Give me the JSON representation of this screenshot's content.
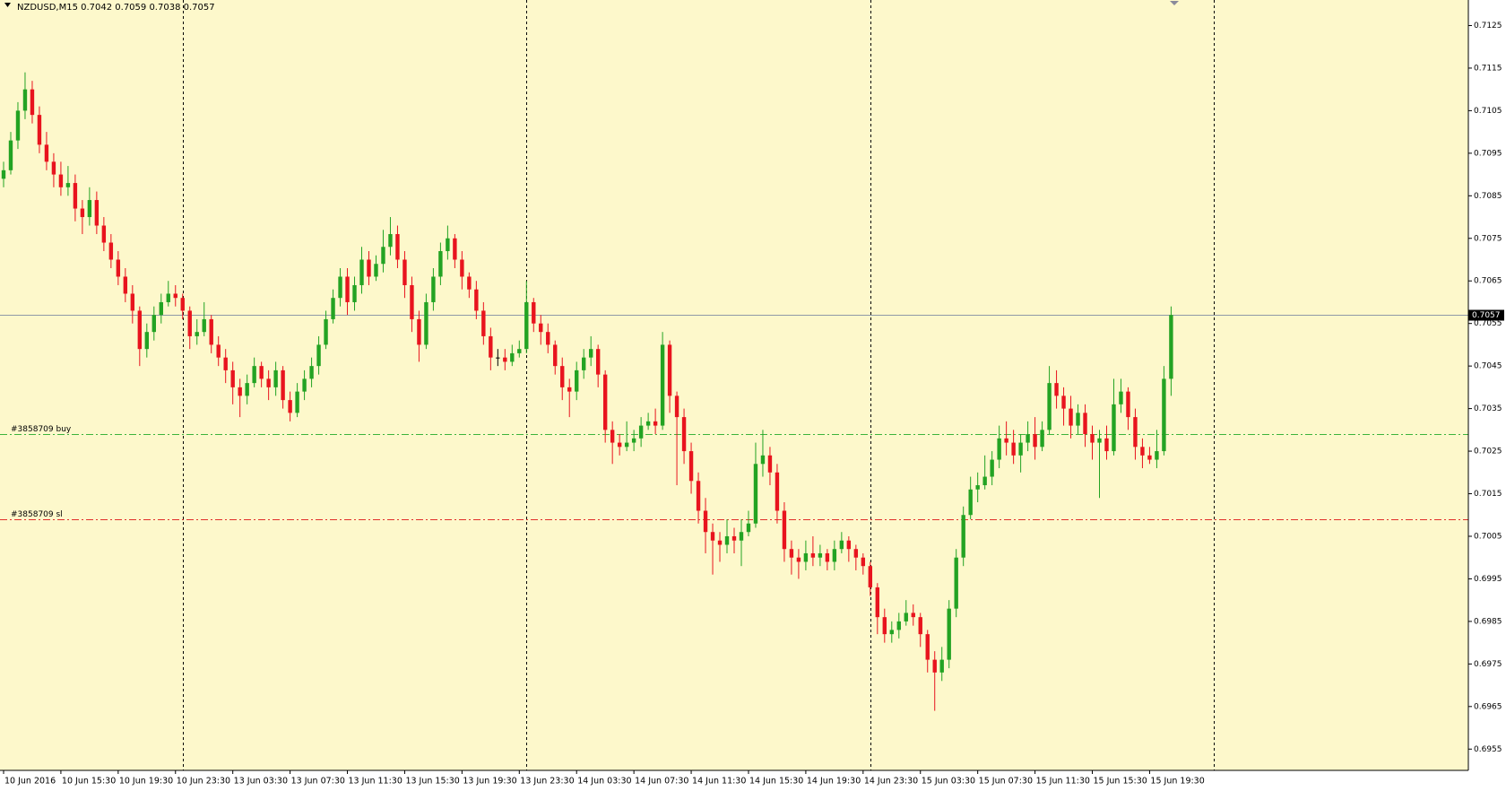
{
  "chart_data": {
    "type": "candlestick",
    "title": "NZDUSD,M15  0.7042 0.7059 0.7038 0.7057",
    "up_color": "#23a323",
    "down_color": "#e8141e",
    "background": "#fdf8cb",
    "ylim": [
      0.695,
      0.7131
    ],
    "yticks": [
      0.6955,
      0.6965,
      0.6975,
      0.6985,
      0.6995,
      0.7005,
      0.7015,
      0.7025,
      0.7035,
      0.7045,
      0.7055,
      0.7065,
      0.7075,
      0.7085,
      0.7095,
      0.7105,
      0.7115,
      0.7125
    ],
    "xlim": [
      -0.5,
      204.5
    ],
    "xticks": [
      {
        "value": 0,
        "label": "10 Jun 2016"
      },
      {
        "value": 8,
        "label": "10 Jun 15:30"
      },
      {
        "value": 16,
        "label": "10 Jun 19:30"
      },
      {
        "value": 24,
        "label": "10 Jun 23:30"
      },
      {
        "value": 32,
        "label": "13 Jun 03:30"
      },
      {
        "value": 40,
        "label": "13 Jun 07:30"
      },
      {
        "value": 48,
        "label": "13 Jun 11:30"
      },
      {
        "value": 56,
        "label": "13 Jun 15:30"
      },
      {
        "value": 64,
        "label": "13 Jun 19:30"
      },
      {
        "value": 72,
        "label": "13 Jun 23:30"
      },
      {
        "value": 80,
        "label": "14 Jun 03:30"
      },
      {
        "value": 88,
        "label": "14 Jun 07:30"
      },
      {
        "value": 96,
        "label": "14 Jun 11:30"
      },
      {
        "value": 104,
        "label": "14 Jun 15:30"
      },
      {
        "value": 112,
        "label": "14 Jun 19:30"
      },
      {
        "value": 120,
        "label": "14 Jun 23:30"
      },
      {
        "value": 128,
        "label": "15 Jun 03:30"
      },
      {
        "value": 136,
        "label": "15 Jun 07:30"
      },
      {
        "value": 144,
        "label": "15 Jun 11:30"
      },
      {
        "value": 152,
        "label": "15 Jun 15:30"
      },
      {
        "value": 160,
        "label": "15 Jun 19:30"
      }
    ],
    "period_separators": [
      25,
      73,
      121,
      169
    ],
    "bid_line": 0.7057,
    "order_lines": [
      {
        "label": "#3858709 buy",
        "value": 0.7029,
        "color": "#3cb33c"
      },
      {
        "label": "#3858709 sl",
        "value": 0.7009,
        "color": "#e0302a"
      }
    ],
    "candles": [
      [
        0.7089,
        0.7093,
        0.7087,
        0.7091
      ],
      [
        0.7091,
        0.71,
        0.709,
        0.7098
      ],
      [
        0.7098,
        0.7107,
        0.7096,
        0.7105
      ],
      [
        0.7105,
        0.7114,
        0.7103,
        0.711
      ],
      [
        0.711,
        0.7112,
        0.7102,
        0.7104
      ],
      [
        0.7104,
        0.7106,
        0.7095,
        0.7097
      ],
      [
        0.7097,
        0.71,
        0.7091,
        0.7093
      ],
      [
        0.7093,
        0.7095,
        0.7087,
        0.709
      ],
      [
        0.709,
        0.7093,
        0.7085,
        0.7087
      ],
      [
        0.7087,
        0.7092,
        0.7085,
        0.7088
      ],
      [
        0.7088,
        0.709,
        0.7079,
        0.7082
      ],
      [
        0.7082,
        0.7084,
        0.7076,
        0.708
      ],
      [
        0.708,
        0.7087,
        0.7078,
        0.7084
      ],
      [
        0.7084,
        0.7086,
        0.7076,
        0.7078
      ],
      [
        0.7078,
        0.708,
        0.7072,
        0.7074
      ],
      [
        0.7074,
        0.7076,
        0.7068,
        0.707
      ],
      [
        0.707,
        0.7072,
        0.7064,
        0.7066
      ],
      [
        0.7066,
        0.7068,
        0.706,
        0.7062
      ],
      [
        0.7062,
        0.7064,
        0.7055,
        0.7058
      ],
      [
        0.7058,
        0.7059,
        0.7045,
        0.7049
      ],
      [
        0.7049,
        0.7055,
        0.7047,
        0.7053
      ],
      [
        0.7053,
        0.7059,
        0.7051,
        0.7057
      ],
      [
        0.7057,
        0.7062,
        0.7055,
        0.706
      ],
      [
        0.706,
        0.7065,
        0.7059,
        0.7062
      ],
      [
        0.7062,
        0.7064,
        0.7059,
        0.7061
      ],
      [
        0.7061,
        0.7062,
        0.7056,
        0.7058
      ],
      [
        0.7058,
        0.7059,
        0.7049,
        0.7052
      ],
      [
        0.7052,
        0.7056,
        0.705,
        0.7053
      ],
      [
        0.7053,
        0.706,
        0.7052,
        0.7056
      ],
      [
        0.7056,
        0.7057,
        0.7048,
        0.705
      ],
      [
        0.705,
        0.7052,
        0.7045,
        0.7047
      ],
      [
        0.7047,
        0.7049,
        0.7041,
        0.7044
      ],
      [
        0.7044,
        0.7046,
        0.7036,
        0.704
      ],
      [
        0.704,
        0.7042,
        0.7033,
        0.7038
      ],
      [
        0.7038,
        0.7043,
        0.7036,
        0.7041
      ],
      [
        0.7041,
        0.7047,
        0.704,
        0.7045
      ],
      [
        0.7045,
        0.7046,
        0.704,
        0.7042
      ],
      [
        0.7042,
        0.7044,
        0.7037,
        0.704
      ],
      [
        0.704,
        0.7046,
        0.7038,
        0.7044
      ],
      [
        0.7044,
        0.7045,
        0.7035,
        0.7037
      ],
      [
        0.7037,
        0.7039,
        0.7032,
        0.7034
      ],
      [
        0.7034,
        0.7041,
        0.7033,
        0.7039
      ],
      [
        0.7039,
        0.7044,
        0.7037,
        0.7042
      ],
      [
        0.7042,
        0.7047,
        0.704,
        0.7045
      ],
      [
        0.7045,
        0.7052,
        0.7043,
        0.705
      ],
      [
        0.705,
        0.7058,
        0.7049,
        0.7056
      ],
      [
        0.7056,
        0.7063,
        0.7055,
        0.7061
      ],
      [
        0.7061,
        0.7068,
        0.7059,
        0.7066
      ],
      [
        0.7066,
        0.7068,
        0.7057,
        0.706
      ],
      [
        0.706,
        0.7066,
        0.7058,
        0.7064
      ],
      [
        0.7064,
        0.7073,
        0.7062,
        0.707
      ],
      [
        0.707,
        0.7072,
        0.7064,
        0.7066
      ],
      [
        0.7066,
        0.7071,
        0.7065,
        0.7069
      ],
      [
        0.7069,
        0.7077,
        0.7067,
        0.7073
      ],
      [
        0.7073,
        0.708,
        0.7071,
        0.7076
      ],
      [
        0.7076,
        0.7078,
        0.7068,
        0.707
      ],
      [
        0.707,
        0.7072,
        0.7061,
        0.7064
      ],
      [
        0.7064,
        0.7066,
        0.7053,
        0.7056
      ],
      [
        0.7056,
        0.7058,
        0.7046,
        0.705
      ],
      [
        0.705,
        0.7062,
        0.7049,
        0.706
      ],
      [
        0.706,
        0.7068,
        0.7058,
        0.7066
      ],
      [
        0.7066,
        0.7074,
        0.7064,
        0.7072
      ],
      [
        0.7072,
        0.7078,
        0.707,
        0.7075
      ],
      [
        0.7075,
        0.7076,
        0.7068,
        0.707
      ],
      [
        0.707,
        0.7072,
        0.7063,
        0.7066
      ],
      [
        0.7066,
        0.7067,
        0.7061,
        0.7063
      ],
      [
        0.7063,
        0.7065,
        0.7056,
        0.7058
      ],
      [
        0.7058,
        0.706,
        0.705,
        0.7052
      ],
      [
        0.7052,
        0.7054,
        0.7044,
        0.7047
      ],
      [
        0.7047,
        0.7049,
        0.7045,
        0.7047
      ],
      [
        0.7047,
        0.7049,
        0.7044,
        0.7046
      ],
      [
        0.7046,
        0.705,
        0.7045,
        0.7048
      ],
      [
        0.7048,
        0.7051,
        0.7047,
        0.7049
      ],
      [
        0.7049,
        0.7065,
        0.7048,
        0.706
      ],
      [
        0.706,
        0.7061,
        0.7053,
        0.7055
      ],
      [
        0.7055,
        0.7057,
        0.705,
        0.7053
      ],
      [
        0.7053,
        0.7055,
        0.7048,
        0.705
      ],
      [
        0.705,
        0.7051,
        0.7043,
        0.7045
      ],
      [
        0.7045,
        0.7047,
        0.7037,
        0.704
      ],
      [
        0.704,
        0.7042,
        0.7033,
        0.7039
      ],
      [
        0.7039,
        0.7046,
        0.7037,
        0.7044
      ],
      [
        0.7044,
        0.7049,
        0.7042,
        0.7047
      ],
      [
        0.7047,
        0.7052,
        0.7045,
        0.7049
      ],
      [
        0.7049,
        0.705,
        0.704,
        0.7043
      ],
      [
        0.7043,
        0.7044,
        0.7027,
        0.703
      ],
      [
        0.703,
        0.7032,
        0.7022,
        0.7027
      ],
      [
        0.7027,
        0.7029,
        0.7024,
        0.7026
      ],
      [
        0.7026,
        0.7032,
        0.7025,
        0.7027
      ],
      [
        0.7027,
        0.703,
        0.7025,
        0.7028
      ],
      [
        0.7028,
        0.7033,
        0.7026,
        0.7031
      ],
      [
        0.7031,
        0.7034,
        0.703,
        0.7032
      ],
      [
        0.7032,
        0.7035,
        0.7029,
        0.7031
      ],
      [
        0.7031,
        0.7053,
        0.703,
        0.705
      ],
      [
        0.705,
        0.7051,
        0.7034,
        0.7038
      ],
      [
        0.7038,
        0.7039,
        0.7017,
        0.7033
      ],
      [
        0.7033,
        0.7035,
        0.7022,
        0.7025
      ],
      [
        0.7025,
        0.7027,
        0.7015,
        0.7018
      ],
      [
        0.7018,
        0.702,
        0.7008,
        0.7011
      ],
      [
        0.7011,
        0.7014,
        0.7001,
        0.7006
      ],
      [
        0.7006,
        0.7008,
        0.6996,
        0.7004
      ],
      [
        0.7004,
        0.7006,
        0.6999,
        0.7003
      ],
      [
        0.7003,
        0.7009,
        0.7001,
        0.7005
      ],
      [
        0.7005,
        0.7007,
        0.7001,
        0.7004
      ],
      [
        0.7004,
        0.7009,
        0.6998,
        0.7006
      ],
      [
        0.7006,
        0.7011,
        0.7005,
        0.7008
      ],
      [
        0.7008,
        0.7027,
        0.7007,
        0.7022
      ],
      [
        0.7022,
        0.703,
        0.7019,
        0.7024
      ],
      [
        0.7024,
        0.7026,
        0.7017,
        0.702
      ],
      [
        0.702,
        0.7022,
        0.7008,
        0.7011
      ],
      [
        0.7011,
        0.7013,
        0.6999,
        0.7002
      ],
      [
        0.7002,
        0.7004,
        0.6996,
        0.7
      ],
      [
        0.7,
        0.7002,
        0.6995,
        0.6999
      ],
      [
        0.6999,
        0.7004,
        0.6997,
        0.7001
      ],
      [
        0.7001,
        0.7005,
        0.6998,
        0.7
      ],
      [
        0.7,
        0.7003,
        0.6998,
        0.7001
      ],
      [
        0.7001,
        0.7002,
        0.6997,
        0.6999
      ],
      [
        0.6999,
        0.7004,
        0.6997,
        0.7002
      ],
      [
        0.7002,
        0.7006,
        0.7001,
        0.7004
      ],
      [
        0.7004,
        0.7005,
        0.6999,
        0.7002
      ],
      [
        0.7002,
        0.7003,
        0.6997,
        0.7
      ],
      [
        0.7,
        0.7001,
        0.6996,
        0.6998
      ],
      [
        0.6998,
        0.6999,
        0.6991,
        0.6993
      ],
      [
        0.6993,
        0.6994,
        0.6982,
        0.6986
      ],
      [
        0.6986,
        0.6988,
        0.698,
        0.6982
      ],
      [
        0.6982,
        0.6985,
        0.698,
        0.6983
      ],
      [
        0.6983,
        0.6987,
        0.6981,
        0.6985
      ],
      [
        0.6985,
        0.699,
        0.6984,
        0.6987
      ],
      [
        0.6987,
        0.6989,
        0.6984,
        0.6986
      ],
      [
        0.6986,
        0.6987,
        0.6979,
        0.6982
      ],
      [
        0.6982,
        0.6983,
        0.6973,
        0.6976
      ],
      [
        0.6976,
        0.6978,
        0.6964,
        0.6973
      ],
      [
        0.6973,
        0.6979,
        0.6971,
        0.6976
      ],
      [
        0.6976,
        0.699,
        0.6974,
        0.6988
      ],
      [
        0.6988,
        0.7002,
        0.6986,
        0.7
      ],
      [
        0.7,
        0.7012,
        0.6998,
        0.701
      ],
      [
        0.701,
        0.7019,
        0.7009,
        0.7016
      ],
      [
        0.7016,
        0.702,
        0.7013,
        0.7017
      ],
      [
        0.7017,
        0.7024,
        0.7016,
        0.7019
      ],
      [
        0.7019,
        0.7025,
        0.7017,
        0.7023
      ],
      [
        0.7023,
        0.7031,
        0.7021,
        0.7028
      ],
      [
        0.7028,
        0.7032,
        0.7024,
        0.7027
      ],
      [
        0.7027,
        0.703,
        0.7022,
        0.7024
      ],
      [
        0.7024,
        0.7029,
        0.702,
        0.7027
      ],
      [
        0.7027,
        0.7032,
        0.7025,
        0.7029
      ],
      [
        0.7029,
        0.7033,
        0.7023,
        0.7026
      ],
      [
        0.7026,
        0.7032,
        0.7025,
        0.703
      ],
      [
        0.703,
        0.7045,
        0.7029,
        0.7041
      ],
      [
        0.7041,
        0.7044,
        0.7035,
        0.7038
      ],
      [
        0.7038,
        0.704,
        0.7031,
        0.7035
      ],
      [
        0.7035,
        0.7038,
        0.7028,
        0.7031
      ],
      [
        0.7031,
        0.7036,
        0.7029,
        0.7034
      ],
      [
        0.7034,
        0.7036,
        0.7026,
        0.7029
      ],
      [
        0.7029,
        0.7031,
        0.7023,
        0.7027
      ],
      [
        0.7027,
        0.703,
        0.7014,
        0.7028
      ],
      [
        0.7028,
        0.7031,
        0.7023,
        0.7025
      ],
      [
        0.7025,
        0.7042,
        0.7024,
        0.7036
      ],
      [
        0.7036,
        0.7042,
        0.7034,
        0.7039
      ],
      [
        0.7039,
        0.704,
        0.703,
        0.7033
      ],
      [
        0.7033,
        0.7035,
        0.7023,
        0.7026
      ],
      [
        0.7026,
        0.7028,
        0.7021,
        0.7024
      ],
      [
        0.7024,
        0.7026,
        0.7022,
        0.7023
      ],
      [
        0.7023,
        0.703,
        0.7021,
        0.7025
      ],
      [
        0.7025,
        0.7045,
        0.7024,
        0.7042
      ],
      [
        0.7042,
        0.7059,
        0.7038,
        0.7057
      ]
    ]
  }
}
